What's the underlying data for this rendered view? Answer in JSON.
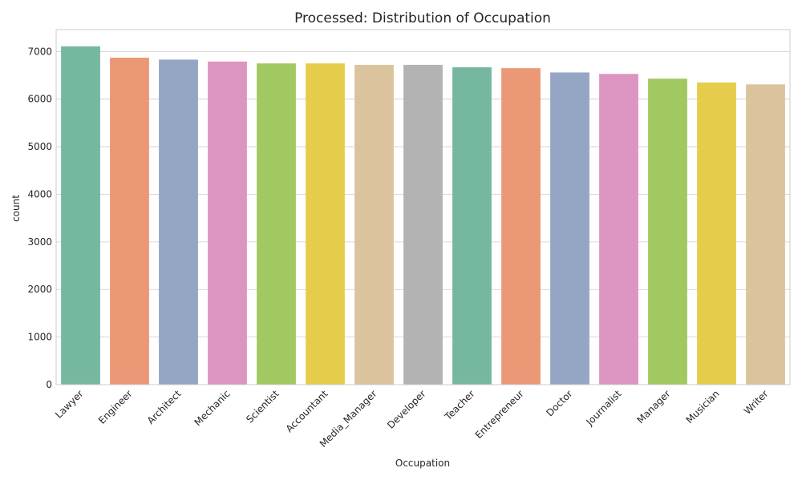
{
  "chart_data": {
    "type": "bar",
    "title": "Processed: Distribution of Occupation",
    "xlabel": "Occupation",
    "ylabel": "count",
    "ylim": [
      0,
      7460
    ],
    "yticks": [
      0,
      1000,
      2000,
      3000,
      4000,
      5000,
      6000,
      7000
    ],
    "grid": "y",
    "categories": [
      "Lawyer",
      "Engineer",
      "Architect",
      "Mechanic",
      "Scientist",
      "Accountant",
      "Media_Manager",
      "Developer",
      "Teacher",
      "Entrepreneur",
      "Doctor",
      "Journalist",
      "Manager",
      "Musician",
      "Writer"
    ],
    "values": [
      7110,
      6870,
      6830,
      6790,
      6750,
      6750,
      6720,
      6720,
      6670,
      6650,
      6560,
      6530,
      6430,
      6350,
      6310
    ],
    "colors": [
      "#76b7a0",
      "#ea9876",
      "#95a5c4",
      "#dc95c0",
      "#a2c862",
      "#e5cd4b",
      "#dbc49d",
      "#b3b3b3",
      "#76b7a0",
      "#ea9876",
      "#95a5c4",
      "#dc95c0",
      "#a2c862",
      "#e5cd4b",
      "#dbc49d"
    ]
  }
}
